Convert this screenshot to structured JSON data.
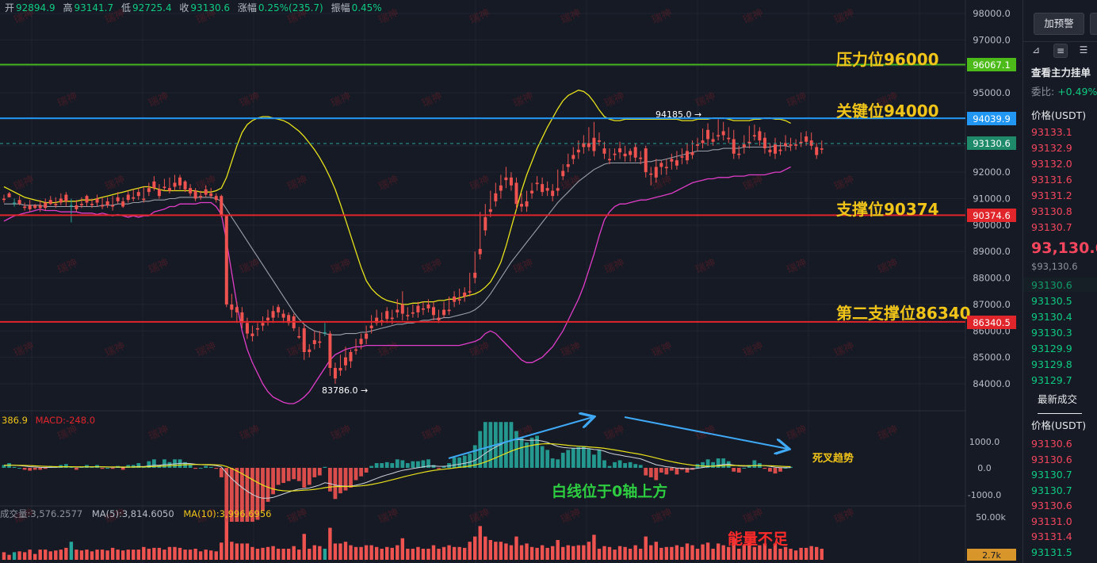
{
  "header": {
    "open_label": "开",
    "open": "92894.9",
    "high_label": "高",
    "high": "93141.7",
    "low_label": "低",
    "low": "92725.4",
    "close_label": "收",
    "close": "93130.6",
    "change_label": "涨幅",
    "change": "0.25%(235.7)",
    "amp_label": "振幅",
    "amp": "0.45%"
  },
  "watermark": "瑞神",
  "levels": [
    {
      "label": "压力位96000",
      "price_tag": "96067.1",
      "price": 96067.1,
      "line_color": "#41b51e",
      "tag_color": "#4cbb1a"
    },
    {
      "label": "关键位94000",
      "price_tag": "94039.9",
      "price": 94039.9,
      "line_color": "#2196f3",
      "tag_color": "#2196f3"
    },
    {
      "label": "支撑位90374",
      "price_tag": "90374.6",
      "price": 90374.6,
      "line_color": "#e0262b",
      "tag_color": "#e0262b"
    },
    {
      "label": "第二支撑位86340",
      "price_tag": "86340.5",
      "price": 86340.5,
      "line_color": "#e0262b",
      "tag_color": "#e0262b"
    }
  ],
  "last_price_tag": "93130.6",
  "price_axis": [
    "98000.0",
    "97000.0",
    "96000.0",
    "95000.0",
    "94000.0",
    "93000.0",
    "92000.0",
    "91000.0",
    "90000.0",
    "89000.0",
    "88000.0",
    "87000.0",
    "86000.0",
    "85000.0",
    "84000.0"
  ],
  "annotations": {
    "high_marker": "94185.0 →",
    "low_marker": "83786.0 →",
    "macd_note": "白线位于0轴上方",
    "death_cross": "死叉趋势",
    "volume_note": "能量不足"
  },
  "macd": {
    "legend_value": "386.9",
    "legend_macd": "MACD:-248.0",
    "axis": [
      "1000.0",
      "0.0",
      "-1000.0"
    ]
  },
  "volume": {
    "legend_vol": "成交量:3,576.2577",
    "legend_ma5": "MA(5):3,814.6050",
    "legend_ma10": "MA(10):3,996.6956",
    "axis_top": "50.00k",
    "last_tag": "2.7k"
  },
  "chart_data": {
    "type": "candlestick",
    "ylim": [
      83400,
      98300
    ],
    "candles": [
      [
        91000,
        91150,
        90950,
        90850
      ],
      [
        91200,
        91250,
        91050,
        91100
      ],
      [
        90850,
        91000,
        90850,
        90700
      ],
      [
        90950,
        91100,
        90800,
        90750
      ],
      [
        90700,
        90850,
        90650,
        90550
      ],
      [
        90750,
        90950,
        90600,
        90500
      ],
      [
        90750,
        90800,
        90650,
        90600
      ],
      [
        90750,
        90950,
        90650,
        90500
      ],
      [
        90850,
        91000,
        90650,
        90550
      ],
      [
        90950,
        91100,
        90800,
        90750
      ],
      [
        90800,
        91050,
        90750,
        90650
      ],
      [
        91000,
        91200,
        90850,
        90750
      ],
      [
        91150,
        91250,
        90900,
        90700
      ],
      [
        90750,
        91000,
        90750,
        90100
      ],
      [
        90750,
        90950,
        90600,
        90500
      ],
      [
        90800,
        91050,
        90750,
        90650
      ],
      [
        91100,
        91150,
        90850,
        90700
      ],
      [
        90800,
        91000,
        90750,
        90650
      ],
      [
        91000,
        91150,
        90850,
        90700
      ],
      [
        90750,
        91050,
        90700,
        90600
      ],
      [
        90900,
        91050,
        90750,
        90650
      ],
      [
        90750,
        91100,
        90700,
        90550
      ],
      [
        91050,
        91250,
        90900,
        90800
      ],
      [
        90900,
        91050,
        90700,
        90650
      ],
      [
        91150,
        91300,
        90950,
        90850
      ],
      [
        91050,
        91350,
        91000,
        90900
      ],
      [
        91250,
        91400,
        91100,
        90950
      ],
      [
        91000,
        91450,
        90950,
        90850
      ],
      [
        91400,
        91600,
        91250,
        91100
      ],
      [
        91650,
        91850,
        91400,
        91300
      ],
      [
        91350,
        91550,
        91100,
        91000
      ],
      [
        91450,
        91750,
        91400,
        91300
      ],
      [
        91400,
        91800,
        91300,
        91200
      ],
      [
        91600,
        91900,
        91450,
        91300
      ],
      [
        91800,
        91900,
        91500,
        91350
      ],
      [
        91650,
        91700,
        91350,
        91250
      ],
      [
        91400,
        91550,
        91200,
        91100
      ],
      [
        91300,
        91400,
        91000,
        90900
      ],
      [
        91100,
        91300,
        91050,
        90950
      ],
      [
        91350,
        91500,
        91150,
        91050
      ],
      [
        91200,
        91400,
        91100,
        91000
      ],
      [
        91100,
        91200,
        90950,
        90850
      ],
      [
        91100,
        91150,
        90400,
        90300
      ],
      [
        90350,
        90400,
        87000,
        86900
      ],
      [
        87000,
        87400,
        86800,
        86500
      ],
      [
        86900,
        87100,
        86700,
        86300
      ],
      [
        86700,
        86900,
        86300,
        86100
      ],
      [
        86300,
        86500,
        85900,
        85700
      ],
      [
        85900,
        86200,
        85800,
        85600
      ],
      [
        86100,
        86300,
        86050,
        85800
      ],
      [
        86300,
        86550,
        86200,
        86000
      ],
      [
        86500,
        86800,
        86400,
        86200
      ],
      [
        86750,
        86950,
        86500,
        86300
      ],
      [
        86900,
        87000,
        86700,
        86500
      ],
      [
        86650,
        86800,
        86500,
        86300
      ],
      [
        86600,
        86700,
        86300,
        86200
      ],
      [
        86550,
        86650,
        86100,
        86000
      ],
      [
        85800,
        86150,
        85750,
        85700
      ],
      [
        86100,
        86250,
        85200,
        84900
      ],
      [
        85300,
        85500,
        85200,
        85000
      ],
      [
        85650,
        86000,
        85500,
        85300
      ],
      [
        85600,
        86000,
        85550,
        85350
      ],
      [
        85950,
        86300,
        85950,
        85800
      ],
      [
        85900,
        86000,
        84600,
        84300
      ],
      [
        84600,
        84800,
        84200,
        84000
      ],
      [
        84600,
        85100,
        84500,
        84300
      ],
      [
        85000,
        85400,
        84700,
        84500
      ],
      [
        85200,
        85300,
        84850,
        84600
      ],
      [
        85300,
        85700,
        85250,
        85100
      ],
      [
        85700,
        85900,
        85500,
        85300
      ],
      [
        85900,
        86200,
        85700,
        85500
      ],
      [
        86200,
        86600,
        86100,
        85900
      ],
      [
        86500,
        86800,
        86300,
        86200
      ],
      [
        86400,
        86700,
        86350,
        86200
      ],
      [
        86750,
        86900,
        86450,
        86300
      ],
      [
        86500,
        86800,
        86450,
        86250
      ],
      [
        86800,
        87200,
        86700,
        86500
      ],
      [
        87000,
        87500,
        86650,
        86400
      ],
      [
        86600,
        86900,
        86550,
        86400
      ],
      [
        86700,
        87000,
        86650,
        86500
      ],
      [
        86950,
        87100,
        86700,
        86500
      ],
      [
        86850,
        87100,
        86800,
        86600
      ],
      [
        87000,
        87200,
        86850,
        86700
      ],
      [
        86900,
        87100,
        86600,
        86400
      ],
      [
        86500,
        86800,
        86400,
        86300
      ],
      [
        86800,
        87100,
        86600,
        86500
      ],
      [
        86800,
        87300,
        86750,
        86600
      ],
      [
        87300,
        87500,
        87100,
        86900
      ],
      [
        87200,
        87600,
        87150,
        87000
      ],
      [
        87450,
        87650,
        87300,
        87100
      ],
      [
        87500,
        88200,
        87450,
        87300
      ],
      [
        88200,
        89000,
        88000,
        87800
      ],
      [
        89100,
        90500,
        88900,
        88700
      ],
      [
        90300,
        90800,
        89800,
        89600
      ],
      [
        90600,
        91300,
        90500,
        90300
      ],
      [
        91200,
        91600,
        90900,
        90700
      ],
      [
        91500,
        91900,
        91300,
        91000
      ],
      [
        91800,
        92200,
        91700,
        91400
      ],
      [
        91800,
        92000,
        91500,
        91300
      ],
      [
        91600,
        91800,
        90800,
        90600
      ],
      [
        90800,
        91200,
        90700,
        90500
      ],
      [
        90900,
        91300,
        90700,
        90500
      ],
      [
        91300,
        91600,
        91200,
        91000
      ],
      [
        91600,
        91850,
        91550,
        91300
      ],
      [
        91550,
        91800,
        91250,
        91100
      ],
      [
        91400,
        91650,
        91300,
        91100
      ],
      [
        91300,
        91550,
        91100,
        90900
      ],
      [
        91400,
        92100,
        91300,
        91100
      ],
      [
        92050,
        92300,
        91850,
        91700
      ],
      [
        92300,
        92700,
        92200,
        92000
      ],
      [
        92650,
        92950,
        92500,
        92300
      ],
      [
        92850,
        93200,
        92750,
        92500
      ],
      [
        93100,
        93400,
        92950,
        92700
      ],
      [
        93100,
        93700,
        92950,
        92800
      ],
      [
        93300,
        93900,
        92800,
        92600
      ],
      [
        93200,
        93500,
        93150,
        93000
      ],
      [
        92900,
        93150,
        92700,
        92500
      ],
      [
        92500,
        92900,
        92450,
        92300
      ],
      [
        92700,
        92900,
        92650,
        92450
      ],
      [
        92900,
        93150,
        92750,
        92500
      ],
      [
        92700,
        93000,
        92600,
        92400
      ],
      [
        92800,
        92900,
        92650,
        92400
      ],
      [
        92950,
        93100,
        92550,
        92400
      ],
      [
        92550,
        92800,
        92500,
        92300
      ],
      [
        92900,
        93000,
        92000,
        91800
      ],
      [
        91950,
        92200,
        91900,
        91500
      ],
      [
        92200,
        92500,
        91800,
        91600
      ],
      [
        92350,
        92450,
        92200,
        91900
      ],
      [
        92200,
        92500,
        92150,
        91900
      ],
      [
        92500,
        92700,
        92400,
        92100
      ],
      [
        92450,
        92800,
        92250,
        92100
      ],
      [
        92600,
        92900,
        92550,
        92300
      ],
      [
        92800,
        93100,
        92450,
        92300
      ],
      [
        92750,
        93200,
        92650,
        92500
      ],
      [
        93050,
        93300,
        93000,
        92800
      ],
      [
        93200,
        93650,
        93100,
        92900
      ],
      [
        93600,
        93850,
        93250,
        93000
      ],
      [
        93250,
        93500,
        93150,
        93000
      ],
      [
        93400,
        94000,
        93350,
        93200
      ],
      [
        93550,
        93900,
        93400,
        93200
      ],
      [
        93300,
        93700,
        93250,
        93100
      ],
      [
        93250,
        93600,
        92700,
        92500
      ],
      [
        92700,
        93000,
        92650,
        92500
      ],
      [
        93050,
        93400,
        92950,
        92700
      ],
      [
        93150,
        93750,
        93100,
        92900
      ],
      [
        93400,
        93800,
        93350,
        93200
      ],
      [
        93550,
        93700,
        93200,
        93000
      ],
      [
        93300,
        93500,
        92900,
        92700
      ],
      [
        92850,
        93100,
        92750,
        92600
      ],
      [
        93050,
        93300,
        92700,
        92500
      ],
      [
        92850,
        93150,
        92800,
        92650
      ],
      [
        93100,
        93400,
        93000,
        92800
      ],
      [
        93050,
        93300,
        93000,
        92800
      ],
      [
        93050,
        93250,
        93000,
        92850
      ],
      [
        93150,
        93500,
        93100,
        92950
      ],
      [
        93350,
        93550,
        93150,
        93000
      ],
      [
        93200,
        93500,
        93000,
        92850
      ],
      [
        92950,
        93100,
        92650,
        92500
      ],
      [
        92900,
        93200,
        92850,
        92700
      ]
    ],
    "upper_band": [
      91450,
      91350,
      91250,
      91150,
      91050,
      91000,
      90950,
      90900,
      90850,
      90850,
      90850,
      90900,
      90900,
      90900,
      90900,
      90950,
      90950,
      90950,
      91000,
      91050,
      91100,
      91150,
      91200,
      91250,
      91300,
      91350,
      91400,
      91450,
      91450,
      91400,
      91350,
      91300,
      91300,
      91300,
      91300,
      91300,
      91300,
      91300,
      91250,
      91250,
      91250,
      91300,
      91400,
      91800,
      92400,
      93000,
      93500,
      93800,
      93950,
      94050,
      94100,
      94100,
      94050,
      94000,
      93950,
      93850,
      93700,
      93550,
      93350,
      93100,
      92850,
      92550,
      92200,
      91800,
      91350,
      90800,
      90200,
      89600,
      89000,
      88400,
      87900,
      87600,
      87400,
      87250,
      87150,
      87100,
      87050,
      87000,
      87000,
      87050,
      87050,
      87100,
      87100,
      87100,
      87150,
      87150,
      87200,
      87200,
      87250,
      87300,
      87350,
      87400,
      87500,
      87650,
      87850,
      88200,
      88600,
      89200,
      89900,
      90600,
      91300,
      91900,
      92400,
      92900,
      93300,
      93700,
      94050,
      94400,
      94700,
      94900,
      95000,
      95100,
      95050,
      94900,
      94650,
      94350,
      94100,
      94000,
      93950,
      93950,
      94000,
      94000,
      94000,
      94000,
      94000,
      94000,
      94000,
      94000,
      94000,
      94000,
      94000,
      93950,
      93950,
      93950,
      94000,
      94000,
      94000,
      94050,
      94050,
      94050,
      94000,
      93950,
      93950,
      93950,
      93950,
      94000,
      94000,
      94050,
      94050,
      94000,
      94000,
      93950,
      93850
    ],
    "middle_band": [
      90800,
      90800,
      90800,
      90800,
      90750,
      90750,
      90750,
      90750,
      90700,
      90700,
      90700,
      90700,
      90700,
      90700,
      90700,
      90700,
      90700,
      90700,
      90700,
      90750,
      90750,
      90750,
      90800,
      90800,
      90800,
      90850,
      90850,
      90900,
      90900,
      90950,
      90950,
      90950,
      91000,
      91000,
      91050,
      91050,
      91050,
      91050,
      91050,
      91050,
      91050,
      91000,
      90900,
      90600,
      90300,
      90000,
      89700,
      89400,
      89100,
      88800,
      88500,
      88200,
      87900,
      87600,
      87300,
      87000,
      86700,
      86450,
      86250,
      86100,
      86000,
      85950,
      85900,
      85850,
      85850,
      85850,
      85900,
      85900,
      85900,
      85950,
      85950,
      86000,
      86050,
      86100,
      86150,
      86200,
      86250,
      86250,
      86300,
      86300,
      86350,
      86400,
      86400,
      86450,
      86450,
      86500,
      86500,
      86550,
      86600,
      86650,
      86700,
      86800,
      86950,
      87150,
      87400,
      87700,
      88000,
      88300,
      88600,
      88850,
      89100,
      89350,
      89600,
      89850,
      90100,
      90350,
      90600,
      90850,
      91050,
      91250,
      91450,
      91650,
      91800,
      91950,
      92100,
      92200,
      92300,
      92350,
      92350,
      92350,
      92350,
      92350,
      92350,
      92350,
      92400,
      92400,
      92450,
      92450,
      92500,
      92550,
      92600,
      92650,
      92700,
      92750,
      92800,
      92800,
      92800,
      92850,
      92850,
      92900,
      92900,
      92900,
      92900,
      92950,
      92950,
      92950,
      92950,
      92950,
      92950,
      93000,
      93000,
      93000,
      92950
    ],
    "lower_band": [
      90150,
      90250,
      90350,
      90400,
      90450,
      90500,
      90550,
      90600,
      90550,
      90550,
      90550,
      90500,
      90500,
      90500,
      90500,
      90450,
      90450,
      90450,
      90400,
      90450,
      90400,
      90350,
      90400,
      90350,
      90300,
      90350,
      90300,
      90350,
      90350,
      90500,
      90550,
      90600,
      90700,
      90700,
      90800,
      90800,
      90800,
      90800,
      90850,
      90850,
      90850,
      90700,
      90400,
      89400,
      88200,
      87000,
      86000,
      85300,
      84800,
      84400,
      84000,
      83700,
      83500,
      83400,
      83300,
      83250,
      83250,
      83350,
      83500,
      83700,
      84000,
      84300,
      84600,
      84900,
      85100,
      85200,
      85300,
      85350,
      85400,
      85400,
      85450,
      85450,
      85450,
      85450,
      85450,
      85450,
      85450,
      85450,
      85450,
      85450,
      85450,
      85450,
      85450,
      85450,
      85450,
      85450,
      85450,
      85450,
      85450,
      85500,
      85550,
      85600,
      85700,
      85900,
      86000,
      85900,
      85700,
      85500,
      85300,
      85100,
      84900,
      84800,
      84800,
      84900,
      85000,
      85200,
      85400,
      85700,
      86000,
      86400,
      86800,
      87200,
      87700,
      88300,
      88900,
      89600,
      90200,
      90500,
      90700,
      90800,
      90800,
      90850,
      90900,
      90950,
      90950,
      91000,
      91050,
      91100,
      91150,
      91200,
      91300,
      91400,
      91500,
      91600,
      91650,
      91700,
      91750,
      91750,
      91800,
      91800,
      91800,
      91850,
      91850,
      91850,
      91900,
      91900,
      91900,
      91900,
      91950,
      92000,
      92000,
      92100,
      92200
    ]
  }
}
